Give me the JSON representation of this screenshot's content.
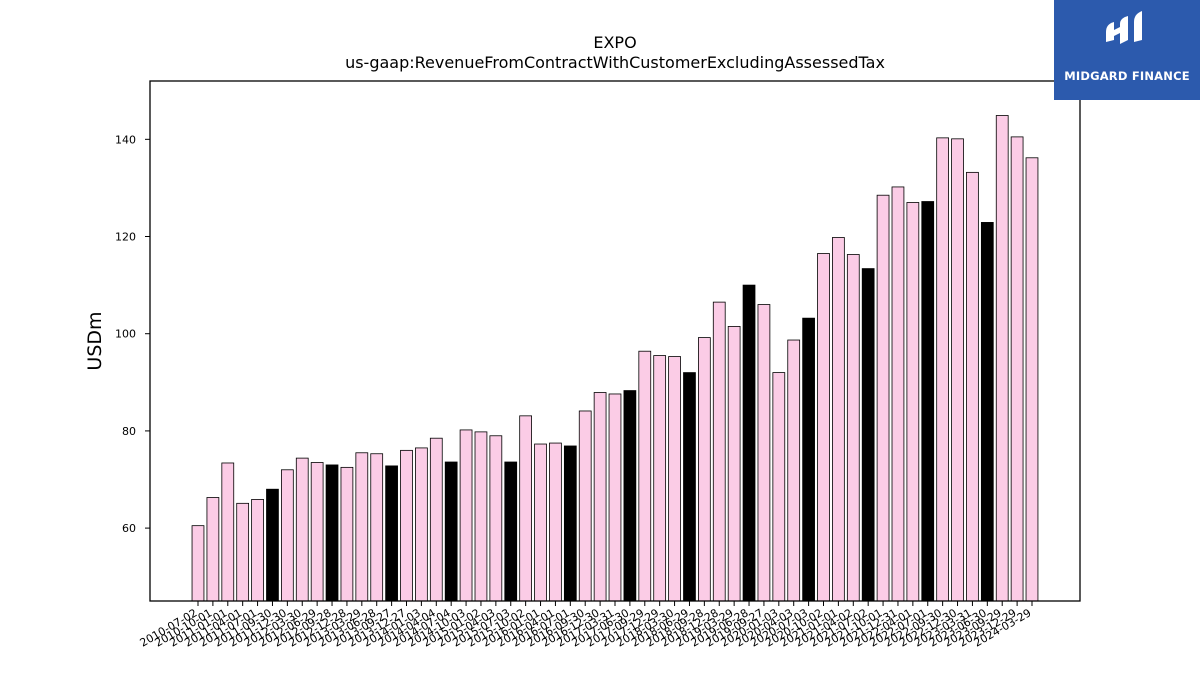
{
  "brand": {
    "name": "MIDGARD FINANCE",
    "background_color": "#2c5aad",
    "text_color": "#ffffff",
    "logo_icon": "midgard-logo-icon"
  },
  "colors": {
    "normal_bar": "#fbcce6",
    "highlight_bar": "#000000",
    "edge": "#000000"
  },
  "chart_data": {
    "type": "bar",
    "title": "EXPO",
    "subtitle": "us-gaap:RevenueFromContractWithCustomerExcludingAssessedTax",
    "xlabel": "",
    "ylabel": "USDm",
    "ylim": [
      45,
      152
    ],
    "yticks": [
      60,
      80,
      100,
      120,
      140
    ],
    "grid": false,
    "categories": [
      "2010-07-02",
      "2010-10-01",
      "2011-01-01",
      "2011-04-01",
      "2011-07-01",
      "2011-09-30",
      "2011-12-30",
      "2012-03-30",
      "2012-06-29",
      "2012-09-28",
      "2012-12-28",
      "2013-03-29",
      "2013-06-28",
      "2013-09-27",
      "2013-12-27",
      "2014-01-03",
      "2014-04-04",
      "2014-07-04",
      "2014-10-03",
      "2015-01-02",
      "2015-04-03",
      "2015-07-03",
      "2015-10-02",
      "2016-01-01",
      "2016-04-01",
      "2016-07-01",
      "2016-09-30",
      "2016-12-30",
      "2017-03-31",
      "2017-06-30",
      "2017-09-29",
      "2017-12-29",
      "2018-03-30",
      "2018-06-29",
      "2018-09-28",
      "2018-12-28",
      "2019-03-29",
      "2019-06-28",
      "2019-09-27",
      "2020-01-03",
      "2020-04-03",
      "2020-07-03",
      "2020-10-02",
      "2021-01-01",
      "2021-04-02",
      "2021-07-02",
      "2021-10-01",
      "2021-12-31",
      "2022-04-01",
      "2022-07-01",
      "2022-09-30",
      "2022-12-30",
      "2023-03-31",
      "2023-06-30",
      "2023-09-29",
      "2023-12-29",
      "2024-03-29"
    ],
    "values": [
      60.5,
      66.3,
      73.4,
      65.1,
      65.9,
      68.0,
      72.0,
      74.4,
      73.5,
      73.0,
      72.5,
      75.5,
      75.3,
      72.8,
      76.0,
      76.5,
      78.5,
      73.6,
      80.2,
      79.8,
      79.0,
      73.6,
      83.1,
      77.3,
      77.5,
      76.9,
      84.1,
      87.9,
      87.6,
      88.3,
      96.4,
      95.5,
      95.3,
      92.0,
      99.2,
      106.5,
      101.5,
      110.0,
      106.0,
      92.0,
      98.7,
      103.2,
      116.5,
      119.8,
      116.3,
      113.4,
      128.5,
      130.2,
      127.0,
      127.2,
      140.3,
      140.1,
      133.2,
      122.9,
      144.9,
      140.5,
      136.2
    ],
    "highlighted": [
      false,
      false,
      false,
      false,
      false,
      true,
      false,
      false,
      false,
      true,
      false,
      false,
      false,
      true,
      false,
      false,
      false,
      true,
      false,
      false,
      false,
      true,
      false,
      false,
      false,
      true,
      false,
      false,
      false,
      true,
      false,
      false,
      false,
      true,
      false,
      false,
      false,
      true,
      false,
      false,
      false,
      true,
      false,
      false,
      false,
      true,
      false,
      false,
      false,
      true,
      false,
      false,
      false,
      true,
      false,
      false,
      false
    ]
  }
}
